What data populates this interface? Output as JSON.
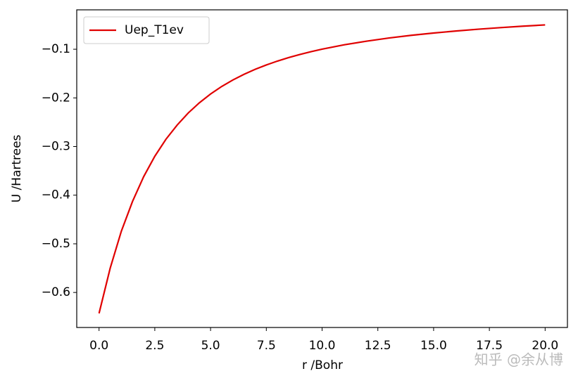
{
  "chart_data": {
    "type": "line",
    "xlabel": "r /Bohr",
    "ylabel": "U /Hartrees",
    "x": [
      0,
      0.5,
      1,
      1.5,
      2,
      2.5,
      3,
      3.5,
      4,
      4.5,
      5,
      5.5,
      6,
      6.5,
      7,
      7.5,
      8,
      8.5,
      9,
      9.5,
      10,
      11,
      12,
      13,
      14,
      15,
      16,
      17,
      18,
      19,
      20
    ],
    "series": [
      {
        "name": "Uep_T1ev",
        "color": "#e00000",
        "values": [
          -0.643,
          -0.55,
          -0.474,
          -0.413,
          -0.362,
          -0.32,
          -0.285,
          -0.256,
          -0.231,
          -0.21,
          -0.192,
          -0.1765,
          -0.1632,
          -0.1515,
          -0.1413,
          -0.1323,
          -0.1243,
          -0.1172,
          -0.1108,
          -0.105,
          -0.0998,
          -0.0908,
          -0.0834,
          -0.0769,
          -0.0714,
          -0.0667,
          -0.0625,
          -0.0588,
          -0.0556,
          -0.0526,
          -0.05
        ]
      }
    ],
    "xlim": [
      -1,
      21
    ],
    "ylim": [
      -0.672,
      -0.019
    ],
    "xticks": [
      {
        "value": 0,
        "label": "0.0"
      },
      {
        "value": 2.5,
        "label": "2.5"
      },
      {
        "value": 5,
        "label": "5.0"
      },
      {
        "value": 7.5,
        "label": "7.5"
      },
      {
        "value": 10,
        "label": "10.0"
      },
      {
        "value": 12.5,
        "label": "12.5"
      },
      {
        "value": 15,
        "label": "15.0"
      },
      {
        "value": 17.5,
        "label": "17.5"
      },
      {
        "value": 20,
        "label": "20.0"
      }
    ],
    "yticks": [
      {
        "value": -0.6,
        "label": "−0.6"
      },
      {
        "value": -0.5,
        "label": "−0.5"
      },
      {
        "value": -0.4,
        "label": "−0.4"
      },
      {
        "value": -0.3,
        "label": "−0.3"
      },
      {
        "value": -0.2,
        "label": "−0.2"
      },
      {
        "value": -0.1,
        "label": "−0.1"
      }
    ],
    "legend": "upper-left",
    "grid": false,
    "watermark": "知乎 @余从博"
  }
}
